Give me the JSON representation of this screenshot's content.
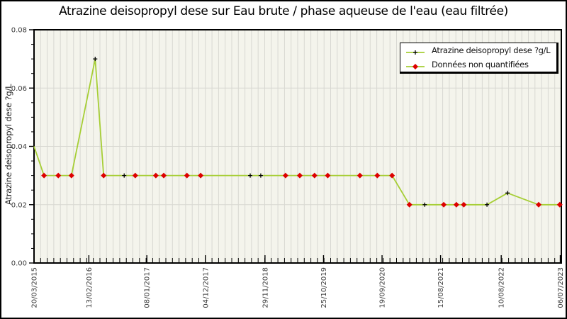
{
  "title": "Atrazine deisopropyl dese sur Eau brute / phase aqueuse de l'eau (eau filtrée)",
  "y_axis": {
    "label": "Atrazine deisopropyl dese ?g/L",
    "tick_labels": [
      "0.00",
      "0.02",
      "0.04",
      "0.06",
      "0.08"
    ]
  },
  "x_axis": {
    "tick_labels": [
      "20/03/2015",
      "13/02/2016",
      "08/01/2017",
      "04/12/2017",
      "29/11/2018",
      "25/10/2019",
      "19/09/2020",
      "15/08/2021",
      "10/08/2022",
      "06/07/2023"
    ]
  },
  "legend": {
    "items": [
      {
        "marker": "black-plus-on-green-line",
        "label": "Atrazine deisopropyl dese ?g/L"
      },
      {
        "marker": "red-diamond-on-green-line",
        "label": "Données non quantifiées"
      }
    ]
  },
  "colors": {
    "line": "#a6ce35",
    "quantified_marker": "#000000",
    "nonquantified_marker": "#dd0000",
    "plot_bg": "#f4f4ec",
    "grid": "#d8d8d2",
    "frame": "#000000",
    "background": "#ffffff"
  },
  "chart_data": {
    "type": "line",
    "title": "Atrazine deisopropyl dese sur Eau brute / phase aqueuse de l'eau (eau filtrée)",
    "xlabel": "",
    "ylabel": "Atrazine deisopropyl dese ?g/L",
    "ylim": [
      0,
      0.08
    ],
    "yticks": [
      0,
      0.02,
      0.04,
      0.06,
      0.08
    ],
    "ytick_labels": [
      "0.00",
      "0.02",
      "0.04",
      "0.06",
      "0.08"
    ],
    "y_minor_step": 0.005,
    "grid": true,
    "grid_y_values": [
      0.02,
      0.04,
      0.06
    ],
    "x_minor_divisions": 80,
    "legend_position": "top-right",
    "xtick_labels": [
      "20/03/2015",
      "13/02/2016",
      "08/01/2017",
      "04/12/2017",
      "29/11/2018",
      "25/10/2019",
      "19/09/2020",
      "15/08/2021",
      "10/08/2022",
      "06/07/2023"
    ],
    "xtick_positions": [
      0.0,
      0.104,
      0.214,
      0.325,
      0.438,
      0.549,
      0.66,
      0.771,
      0.886,
      0.998
    ],
    "series_name": "Atrazine deisopropyl dese ?g/L",
    "flag_legend": "q = quantified (black plus), nq = donnée non quantifiée (red diamond), x = fraction of time axis",
    "points": [
      {
        "x": 0.0,
        "y": 0.04,
        "flag": "none"
      },
      {
        "x": 0.019,
        "y": 0.03,
        "flag": "nq"
      },
      {
        "x": 0.046,
        "y": 0.03,
        "flag": "nq"
      },
      {
        "x": 0.071,
        "y": 0.03,
        "flag": "nq"
      },
      {
        "x": 0.116,
        "y": 0.07,
        "flag": "q"
      },
      {
        "x": 0.132,
        "y": 0.03,
        "flag": "nq"
      },
      {
        "x": 0.171,
        "y": 0.03,
        "flag": "q"
      },
      {
        "x": 0.192,
        "y": 0.03,
        "flag": "nq"
      },
      {
        "x": 0.231,
        "y": 0.03,
        "flag": "nq"
      },
      {
        "x": 0.246,
        "y": 0.03,
        "flag": "nq"
      },
      {
        "x": 0.29,
        "y": 0.03,
        "flag": "nq"
      },
      {
        "x": 0.316,
        "y": 0.03,
        "flag": "nq"
      },
      {
        "x": 0.41,
        "y": 0.03,
        "flag": "q"
      },
      {
        "x": 0.43,
        "y": 0.03,
        "flag": "q"
      },
      {
        "x": 0.477,
        "y": 0.03,
        "flag": "nq"
      },
      {
        "x": 0.504,
        "y": 0.03,
        "flag": "nq"
      },
      {
        "x": 0.532,
        "y": 0.03,
        "flag": "nq"
      },
      {
        "x": 0.557,
        "y": 0.03,
        "flag": "nq"
      },
      {
        "x": 0.618,
        "y": 0.03,
        "flag": "nq"
      },
      {
        "x": 0.651,
        "y": 0.03,
        "flag": "nq"
      },
      {
        "x": 0.679,
        "y": 0.03,
        "flag": "nq"
      },
      {
        "x": 0.712,
        "y": 0.02,
        "flag": "nq"
      },
      {
        "x": 0.741,
        "y": 0.02,
        "flag": "q"
      },
      {
        "x": 0.777,
        "y": 0.02,
        "flag": "nq"
      },
      {
        "x": 0.801,
        "y": 0.02,
        "flag": "nq"
      },
      {
        "x": 0.815,
        "y": 0.02,
        "flag": "nq"
      },
      {
        "x": 0.859,
        "y": 0.02,
        "flag": "q"
      },
      {
        "x": 0.898,
        "y": 0.024,
        "flag": "q"
      },
      {
        "x": 0.957,
        "y": 0.02,
        "flag": "nq"
      },
      {
        "x": 0.997,
        "y": 0.02,
        "flag": "nq"
      }
    ]
  }
}
